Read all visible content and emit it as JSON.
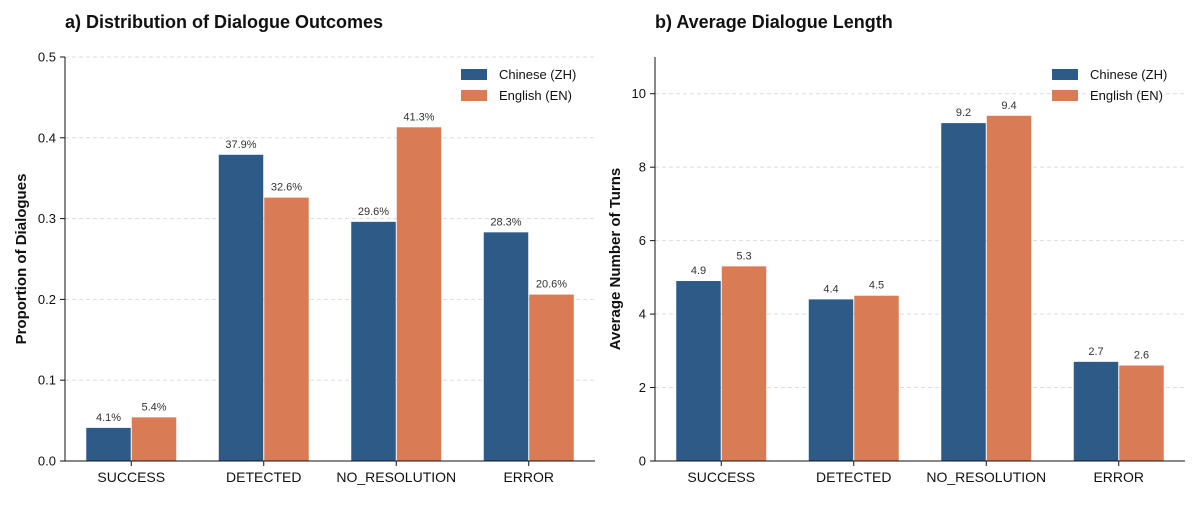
{
  "colors": {
    "zh": "#2e5a87",
    "en": "#d97c55"
  },
  "chart_data": [
    {
      "type": "bar",
      "title": "a) Distribution of Dialogue Outcomes",
      "xlabel": "",
      "ylabel": "Proportion of Dialogues",
      "ylim": [
        0,
        0.5
      ],
      "yticks": [
        "0.0",
        "0.1",
        "0.2",
        "0.3",
        "0.4",
        "0.5"
      ],
      "categories": [
        "SUCCESS",
        "DETECTED",
        "NO_RESOLUTION",
        "ERROR"
      ],
      "series": [
        {
          "name": "Chinese (ZH)",
          "values": [
            0.041,
            0.379,
            0.296,
            0.283
          ],
          "labels": [
            "4.1%",
            "37.9%",
            "29.6%",
            "28.3%"
          ]
        },
        {
          "name": "English (EN)",
          "values": [
            0.054,
            0.326,
            0.413,
            0.206
          ],
          "labels": [
            "5.4%",
            "32.6%",
            "41.3%",
            "20.6%"
          ]
        }
      ],
      "grid": true,
      "legend": "top-right"
    },
    {
      "type": "bar",
      "title": "b) Average Dialogue Length",
      "xlabel": "",
      "ylabel": "Average Number of Turns",
      "ylim": [
        0,
        11
      ],
      "yticks": [
        "0",
        "2",
        "4",
        "6",
        "8",
        "10"
      ],
      "categories": [
        "SUCCESS",
        "DETECTED",
        "NO_RESOLUTION",
        "ERROR"
      ],
      "series": [
        {
          "name": "Chinese (ZH)",
          "values": [
            4.9,
            4.4,
            9.2,
            2.7
          ],
          "labels": [
            "4.9",
            "4.4",
            "9.2",
            "2.7"
          ]
        },
        {
          "name": "English (EN)",
          "values": [
            5.3,
            4.5,
            9.4,
            2.6
          ],
          "labels": [
            "5.3",
            "4.5",
            "9.4",
            "2.6"
          ]
        }
      ],
      "grid": true,
      "legend": "top-right"
    }
  ]
}
